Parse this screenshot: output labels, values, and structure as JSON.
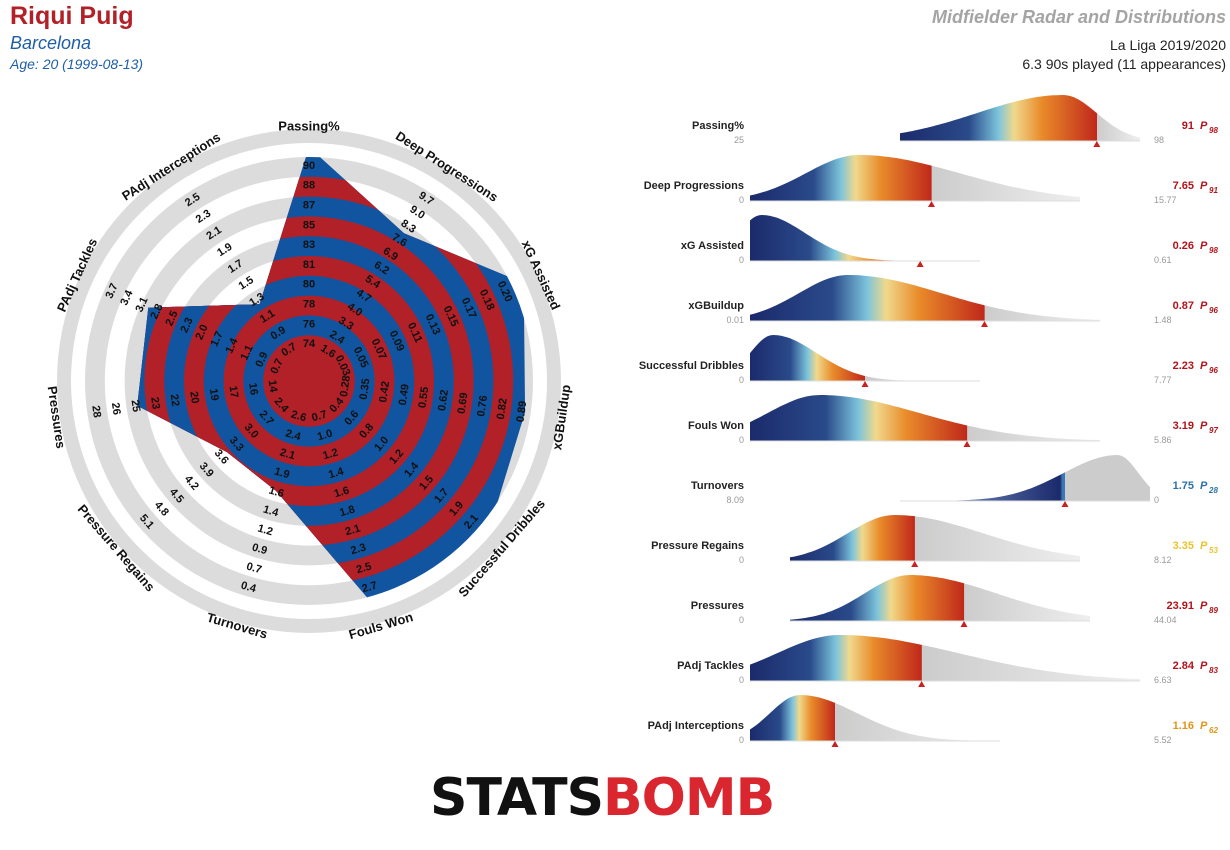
{
  "player": {
    "name": "Riqui Puig",
    "team": "Barcelona",
    "age_line": "Age: 20 (1999-08-13)"
  },
  "header": {
    "title": "Midfielder Radar and Distributions",
    "league": "La Liga 2019/2020",
    "minutes": "6.3 90s played (11 appearances)"
  },
  "logo": {
    "stats": "STATS",
    "bomb": "BOMB"
  },
  "colors": {
    "red": "#b22028",
    "blue": "#1155a0",
    "ring_grey": "#dcdcdc",
    "dist_grey": "#cccccc",
    "dark_blue": "#1b2a6b",
    "yellow": "#f0d98c",
    "orange": "#e98b2a",
    "dark_red": "#c0281a",
    "percentile_red": "#b0141a",
    "percentile_blue": "#2a72a6",
    "percentile_yellow": "#e8c42e",
    "percentile_orange": "#e09418"
  },
  "chart_data": [
    {
      "type": "radar",
      "title": "",
      "axes": [
        {
          "label": "Passing%",
          "ticks": [
            "74",
            "76",
            "78",
            "80",
            "81",
            "83",
            "85",
            "87",
            "88",
            "90"
          ],
          "value": 91
        },
        {
          "label": "Deep Progressions",
          "ticks": [
            "1.6",
            "2.4",
            "3.3",
            "4.0",
            "4.7",
            "5.4",
            "6.2",
            "6.9",
            "7.6",
            "8.3",
            "9.0",
            "9.7"
          ],
          "value": 7.65
        },
        {
          "label": "xG Assisted",
          "ticks": [
            "0.03",
            "0.05",
            "0.07",
            "0.09",
            "0.11",
            "0.13",
            "0.15",
            "0.17",
            "0.18",
            "0.20"
          ],
          "value": 0.26
        },
        {
          "label": "xGBuildup",
          "ticks": [
            "0.28",
            "0.35",
            "0.42",
            "0.49",
            "0.55",
            "0.62",
            "0.69",
            "0.76",
            "0.82",
            "0.89"
          ],
          "value": 0.87
        },
        {
          "label": "Successful Dribbles",
          "ticks": [
            "0.4",
            "0.6",
            "0.8",
            "1.0",
            "1.2",
            "1.4",
            "1.5",
            "1.7",
            "1.9",
            "2.1"
          ],
          "value": 2.23
        },
        {
          "label": "Fouls Won",
          "ticks": [
            "0.7",
            "1.0",
            "1.2",
            "1.4",
            "1.6",
            "1.8",
            "2.1",
            "2.3",
            "2.5",
            "2.7"
          ],
          "value": 3.19
        },
        {
          "label": "Turnovers",
          "ticks": [
            "2.6",
            "2.4",
            "2.1",
            "1.9",
            "1.6",
            "1.4",
            "1.2",
            "0.9",
            "0.7",
            "0.4"
          ],
          "value": 1.75
        },
        {
          "label": "Pressure Regains",
          "ticks": [
            "2.4",
            "2.7",
            "3.0",
            "3.3",
            "3.6",
            "3.9",
            "4.2",
            "4.5",
            "4.8",
            "5.1"
          ],
          "value": 3.35
        },
        {
          "label": "Pressures",
          "ticks": [
            "14",
            "16",
            "17",
            "19",
            "20",
            "22",
            "23",
            "25",
            "26",
            "28"
          ],
          "value": 23.91
        },
        {
          "label": "PAdj Tackles",
          "ticks": [
            "0.7",
            "0.9",
            "1.1",
            "1.4",
            "1.7",
            "2.0",
            "2.3",
            "2.5",
            "2.8",
            "3.1",
            "3.4",
            "3.7"
          ],
          "value": 2.84
        },
        {
          "label": "PAdj Interceptions",
          "ticks": [
            "0.7",
            "0.9",
            "1.1",
            "1.3",
            "1.5",
            "1.7",
            "1.9",
            "2.1",
            "2.3",
            "2.5"
          ],
          "value": 1.16
        }
      ]
    },
    {
      "type": "area",
      "title": "",
      "rows": [
        {
          "label": "Passing%",
          "min": "25",
          "max": "98",
          "value": "91",
          "percentile": "98",
          "percentile_color": "red",
          "bold_label": false
        },
        {
          "label": "Deep Progressions",
          "min": "0",
          "max": "15.77",
          "value": "7.65",
          "percentile": "91",
          "percentile_color": "red",
          "bold_label": false
        },
        {
          "label": "xG Assisted",
          "min": "0",
          "max": "0.61",
          "value": "0.26",
          "percentile": "98",
          "percentile_color": "red",
          "bold_label": false
        },
        {
          "label": "xGBuildup",
          "min": "0.01",
          "max": "1.48",
          "value": "0.87",
          "percentile": "96",
          "percentile_color": "red",
          "bold_label": false
        },
        {
          "label": "Successful Dribbles",
          "min": "0",
          "max": "7.77",
          "value": "2.23",
          "percentile": "96",
          "percentile_color": "red",
          "bold_label": true
        },
        {
          "label": "Fouls Won",
          "min": "0",
          "max": "5.86",
          "value": "3.19",
          "percentile": "97",
          "percentile_color": "red",
          "bold_label": false
        },
        {
          "label": "Turnovers",
          "min": "8.09",
          "max": "0",
          "value": "1.75",
          "percentile": "28",
          "percentile_color": "blue",
          "bold_label": false
        },
        {
          "label": "Pressure Regains",
          "min": "0",
          "max": "8.12",
          "value": "3.35",
          "percentile": "53",
          "percentile_color": "yellow",
          "bold_label": false
        },
        {
          "label": "Pressures",
          "min": "0",
          "max": "44.04",
          "value": "23.91",
          "percentile": "89",
          "percentile_color": "red",
          "bold_label": false
        },
        {
          "label": "PAdj Tackles",
          "min": "0",
          "max": "6.63",
          "value": "2.84",
          "percentile": "83",
          "percentile_color": "red",
          "bold_label": false
        },
        {
          "label": "PAdj Interceptions",
          "min": "0",
          "max": "5.52",
          "value": "1.16",
          "percentile": "62",
          "percentile_color": "orange",
          "bold_label": true
        }
      ]
    }
  ]
}
